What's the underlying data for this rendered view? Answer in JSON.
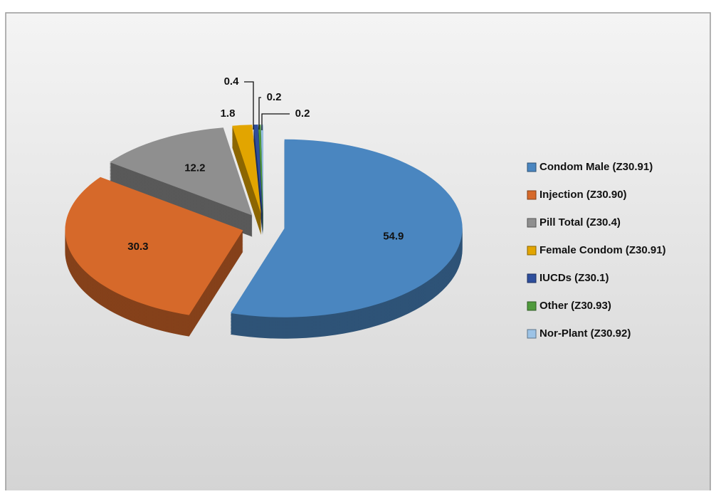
{
  "chart_data": {
    "type": "pie",
    "categories": [
      "Condom Male (Z30.91)",
      "Injection (Z30.90)",
      "Pill Total (Z30.4)",
      "Female Condom (Z30.91)",
      "IUCDs (Z30.1)",
      "Other (Z30.93)",
      "Nor-Plant (Z30.92)"
    ],
    "values": [
      54.9,
      30.3,
      12.2,
      1.8,
      0.4,
      0.2,
      0.2
    ],
    "colors": [
      "#4a86c0",
      "#d6692a",
      "#8f8f8f",
      "#e2a500",
      "#2e4e9c",
      "#4f9a3c",
      "#9cc3e6"
    ],
    "legend": "right"
  }
}
